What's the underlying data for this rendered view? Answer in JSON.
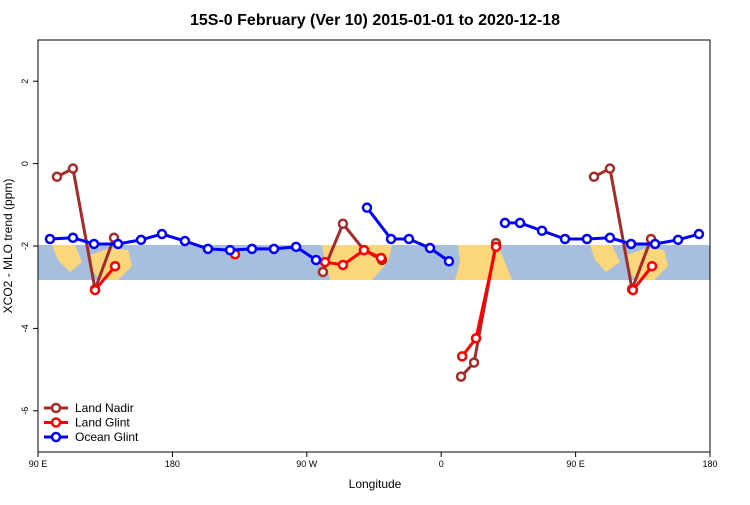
{
  "chart_data": {
    "type": "line",
    "title": "15S-0 February (Ver 10)   2015-01-01 to 2020-12-18",
    "x_label": "Longitude",
    "y_label": "XCO2 - MLO trend (ppm)",
    "xlim": [
      90,
      540
    ],
    "xticks": [
      {
        "value": 90,
        "label": "90 E"
      },
      180,
      {
        "value": 270,
        "label": "90 W"
      },
      {
        "value": 360,
        "label": "0"
      },
      {
        "value": 450,
        "label": "90 E"
      },
      {
        "value": 540,
        "label": "180"
      }
    ],
    "ylim": [
      -7,
      3
    ],
    "yticks": [
      -6,
      -4,
      -2,
      0,
      2
    ],
    "legend": "bottom-left",
    "series": [
      {
        "name": "Land Nadir",
        "color": "#a52a2a",
        "x": [
          102.7,
          113.4,
          128.2,
          140.9,
          null,
          280.8,
          294.2,
          308.3,
          320.4,
          null,
          373.3,
          382.0,
          396.7,
          null,
          462.3,
          473.0,
          487.8,
          500.5
        ],
        "values": [
          -0.32,
          -0.12,
          -3.05,
          -1.8,
          null,
          -2.63,
          -1.46,
          -2.1,
          -2.34,
          null,
          -5.17,
          -4.83,
          -1.93,
          null,
          -0.32,
          -0.12,
          -3.05,
          -1.83
        ]
      },
      {
        "name": "Land Glint",
        "color": "#ff0000",
        "x": [
          128.2,
          141.6,
          null,
          221.9,
          null,
          282.2,
          294.2,
          308.3,
          319.7,
          null,
          374.0,
          383.3,
          396.7,
          null,
          488.4,
          501.2
        ],
        "values": [
          -3.07,
          -2.49,
          null,
          -2.2,
          null,
          -2.39,
          -2.46,
          -2.1,
          -2.29,
          null,
          -4.68,
          -4.24,
          -2.02,
          null,
          -3.07,
          -2.49
        ]
      },
      {
        "name": "Ocean Glint",
        "color": "#0000ff",
        "x": [
          98.0,
          113.4,
          127.5,
          143.6,
          159.0,
          173.0,
          188.4,
          203.8,
          218.6,
          233.3,
          248.0,
          262.8,
          276.2,
          null,
          310.3,
          326.4,
          338.4,
          352.5,
          365.2,
          null,
          402.7,
          412.8,
          427.5,
          442.9,
          457.6,
          473.0,
          487.1,
          503.2,
          518.6,
          532.6
        ],
        "values": [
          -1.83,
          -1.8,
          -1.95,
          -1.95,
          -1.85,
          -1.71,
          -1.88,
          -2.07,
          -2.1,
          -2.07,
          -2.07,
          -2.02,
          -2.34,
          null,
          -1.07,
          -1.83,
          -1.83,
          -2.05,
          -2.37,
          null,
          -1.44,
          -1.44,
          -1.63,
          -1.83,
          -1.83,
          -1.8,
          -1.95,
          -1.95,
          -1.85,
          -1.71
        ]
      }
    ]
  }
}
